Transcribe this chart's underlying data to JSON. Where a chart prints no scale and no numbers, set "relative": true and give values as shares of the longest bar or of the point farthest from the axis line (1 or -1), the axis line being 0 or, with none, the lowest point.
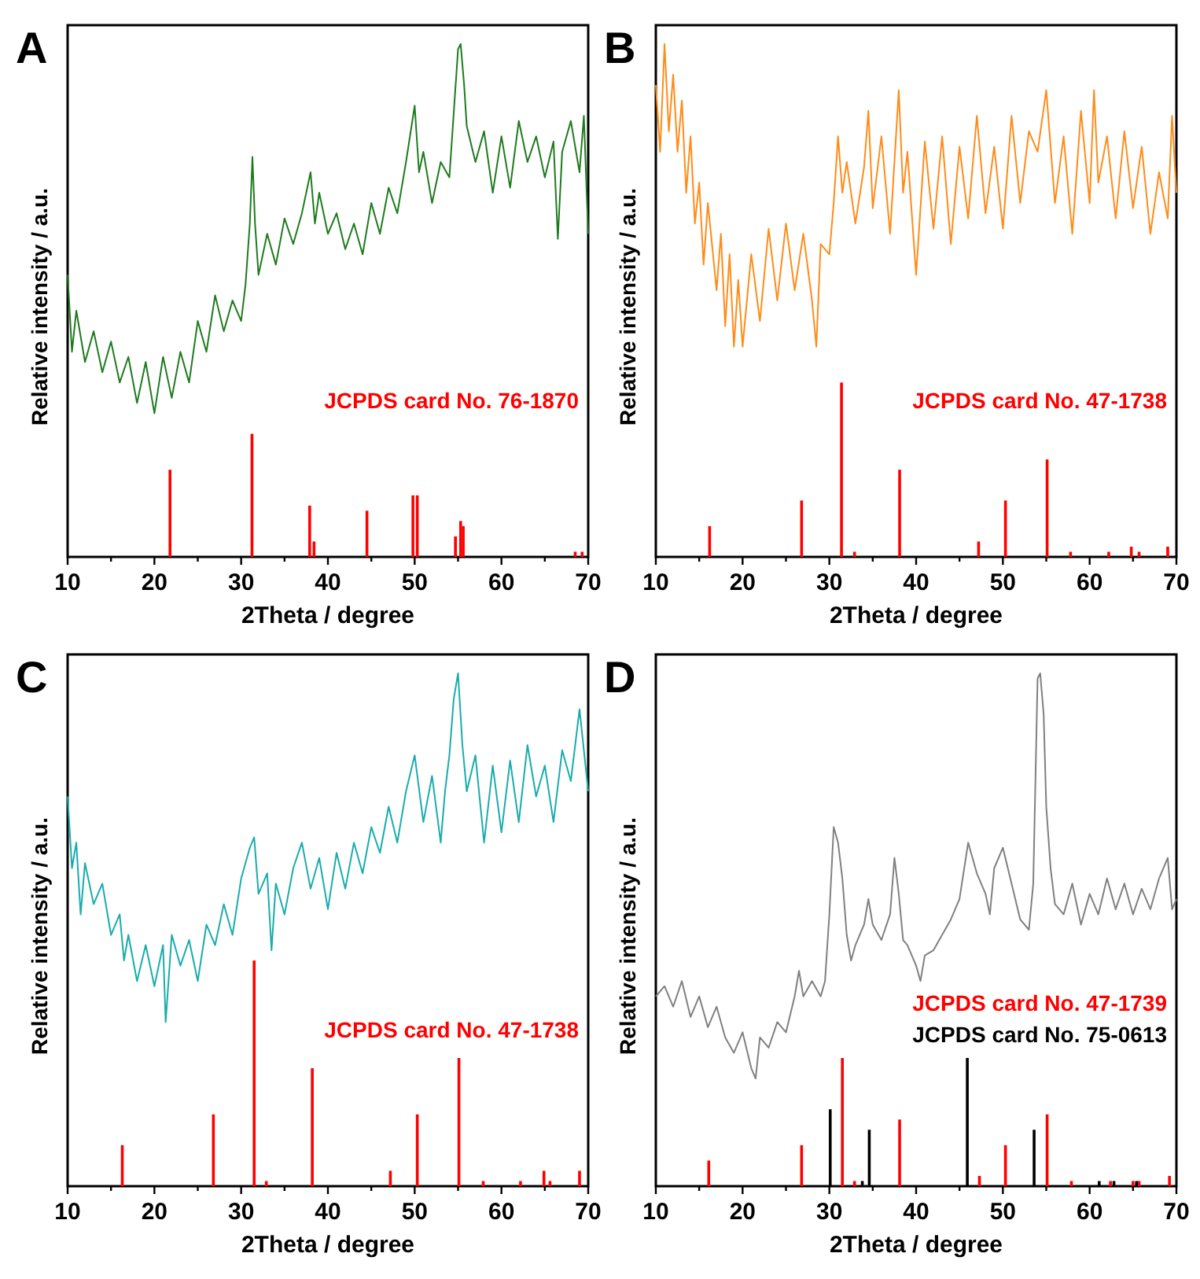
{
  "chart_data": [
    {
      "type": "line",
      "title": "A",
      "xlabel": "2Theta / degree",
      "ylabel": "Relative intensity / a.u.",
      "relative": true,
      "xlim": [
        10,
        70
      ],
      "xticks": [
        10,
        {
          "value": 15,
          "label": null
        },
        20,
        {
          "value": 25,
          "label": null
        },
        30,
        {
          "value": 35,
          "label": null
        },
        40,
        {
          "value": 45,
          "label": null
        },
        50,
        {
          "value": 55,
          "label": null
        },
        60,
        {
          "value": 65,
          "label": null
        },
        70
      ],
      "series": [
        {
          "color": "#1e7b1e",
          "x": [
            10,
            10.5,
            11,
            12,
            13,
            14,
            15,
            16,
            17,
            18,
            19,
            20,
            21,
            22,
            23,
            24,
            25,
            26,
            27,
            28,
            29,
            30,
            30.5,
            31,
            31.3,
            31.6,
            32,
            33,
            34,
            35,
            36,
            37,
            38,
            38.5,
            39,
            40,
            41,
            42,
            43,
            44,
            45,
            46,
            47,
            48,
            49,
            50,
            50.5,
            51,
            52,
            53,
            54,
            55,
            55.3,
            55.7,
            56,
            57,
            58,
            59,
            60,
            61,
            62,
            63,
            64,
            65,
            66,
            66.5,
            67,
            68,
            69,
            69.5,
            70
          ],
          "values": [
            0.55,
            0.4,
            0.48,
            0.38,
            0.44,
            0.36,
            0.42,
            0.34,
            0.39,
            0.3,
            0.38,
            0.28,
            0.39,
            0.31,
            0.4,
            0.34,
            0.46,
            0.4,
            0.51,
            0.44,
            0.5,
            0.46,
            0.53,
            0.65,
            0.78,
            0.65,
            0.55,
            0.63,
            0.57,
            0.66,
            0.61,
            0.67,
            0.75,
            0.65,
            0.71,
            0.63,
            0.67,
            0.6,
            0.65,
            0.59,
            0.69,
            0.63,
            0.72,
            0.67,
            0.77,
            0.88,
            0.75,
            0.79,
            0.69,
            0.77,
            0.74,
            0.99,
            1,
            0.92,
            0.84,
            0.77,
            0.83,
            0.71,
            0.82,
            0.72,
            0.85,
            0.77,
            0.82,
            0.74,
            0.81,
            0.62,
            0.79,
            0.85,
            0.75,
            0.86,
            0.63
          ]
        },
        {
          "type": "bar",
          "name": "JCPDS card No. 76-1870",
          "color": "#ff0000",
          "x": [
            21.8,
            31.25,
            37.9,
            38.4,
            44.5,
            49.8,
            50.3,
            54.7,
            55.3,
            55.6,
            68.5,
            69.3
          ],
          "values": [
            0.17,
            0.24,
            0.1,
            0.03,
            0.09,
            0.12,
            0.12,
            0.04,
            0.07,
            0.06,
            0.01,
            0.01
          ]
        }
      ]
    },
    {
      "type": "line",
      "title": "B",
      "xlabel": "2Theta / degree",
      "ylabel": "Relative intensity / a.u.",
      "relative": true,
      "xlim": [
        10,
        70
      ],
      "xticks": [
        10,
        {
          "value": 15,
          "label": null
        },
        20,
        {
          "value": 25,
          "label": null
        },
        30,
        {
          "value": 35,
          "label": null
        },
        40,
        {
          "value": 45,
          "label": null
        },
        50,
        {
          "value": 55,
          "label": null
        },
        60,
        {
          "value": 65,
          "label": null
        },
        70
      ],
      "series": [
        {
          "color": "#ff8c1a",
          "x": [
            10,
            10.5,
            11,
            11.5,
            12,
            12.5,
            13,
            13.5,
            14,
            14.5,
            15,
            15.5,
            16,
            17,
            17.5,
            18,
            18.5,
            19,
            19.5,
            20,
            21,
            22,
            23,
            24,
            25,
            26,
            27,
            28,
            28.5,
            29,
            30,
            30.5,
            31,
            31.5,
            32,
            33,
            34,
            34.5,
            35,
            36,
            37,
            38,
            38.5,
            39,
            40,
            41,
            42,
            43,
            44,
            45,
            46,
            47,
            48,
            49,
            50,
            51,
            52,
            53,
            54,
            55,
            56,
            57,
            58,
            59,
            60,
            60.5,
            61,
            62,
            63,
            64,
            65,
            66,
            67,
            68,
            69,
            69.5,
            70
          ],
          "values": [
            0.92,
            0.79,
            1,
            0.83,
            0.94,
            0.79,
            0.89,
            0.71,
            0.82,
            0.65,
            0.73,
            0.57,
            0.69,
            0.52,
            0.63,
            0.45,
            0.59,
            0.41,
            0.54,
            0.41,
            0.59,
            0.46,
            0.64,
            0.5,
            0.65,
            0.52,
            0.63,
            0.5,
            0.41,
            0.61,
            0.59,
            0.69,
            0.82,
            0.71,
            0.77,
            0.65,
            0.76,
            0.87,
            0.68,
            0.82,
            0.63,
            0.91,
            0.71,
            0.79,
            0.55,
            0.81,
            0.64,
            0.82,
            0.61,
            0.8,
            0.66,
            0.86,
            0.67,
            0.8,
            0.64,
            0.86,
            0.69,
            0.83,
            0.79,
            0.91,
            0.69,
            0.82,
            0.63,
            0.87,
            0.69,
            0.91,
            0.73,
            0.82,
            0.66,
            0.83,
            0.68,
            0.8,
            0.63,
            0.75,
            0.66,
            0.86,
            0.71
          ]
        },
        {
          "type": "bar",
          "name": "JCPDS card No. 47-1738",
          "color": "#ff0000",
          "x": [
            16.2,
            26.8,
            31.4,
            32.9,
            38.1,
            47.2,
            50.3,
            55.1,
            57.8,
            62.2,
            64.8,
            65.7,
            69.0
          ],
          "values": [
            0.06,
            0.11,
            0.34,
            0.01,
            0.17,
            0.03,
            0.11,
            0.19,
            0.01,
            0.01,
            0.02,
            0.01,
            0.02
          ]
        }
      ]
    },
    {
      "type": "line",
      "title": "C",
      "xlabel": "2Theta / degree",
      "ylabel": "Relative intensity / a.u.",
      "relative": true,
      "xlim": [
        10,
        70
      ],
      "xticks": [
        10,
        {
          "value": 15,
          "label": null
        },
        20,
        {
          "value": 25,
          "label": null
        },
        30,
        {
          "value": 35,
          "label": null
        },
        40,
        {
          "value": 45,
          "label": null
        },
        50,
        {
          "value": 55,
          "label": null
        },
        60,
        {
          "value": 65,
          "label": null
        },
        70
      ],
      "series": [
        {
          "color": "#1aacac",
          "x": [
            10,
            10.5,
            11,
            11.5,
            12,
            13,
            14,
            15,
            16,
            16.5,
            17,
            18,
            19,
            20,
            21,
            21.3,
            22,
            23,
            24,
            25,
            26,
            27,
            28,
            29,
            30,
            31,
            31.5,
            32,
            33,
            33.5,
            34,
            35,
            36,
            37,
            38,
            39,
            40,
            41,
            42,
            43,
            44,
            45,
            46,
            47,
            48,
            49,
            50,
            51,
            52,
            53,
            53.5,
            54,
            54.5,
            55,
            55.5,
            56,
            57,
            58,
            59,
            60,
            61,
            62,
            63,
            64,
            65,
            66,
            67,
            68,
            69,
            70
          ],
          "values": [
            0.76,
            0.62,
            0.67,
            0.53,
            0.63,
            0.55,
            0.59,
            0.49,
            0.53,
            0.44,
            0.49,
            0.4,
            0.47,
            0.39,
            0.47,
            0.32,
            0.49,
            0.43,
            0.48,
            0.4,
            0.51,
            0.47,
            0.55,
            0.49,
            0.6,
            0.66,
            0.68,
            0.57,
            0.61,
            0.46,
            0.59,
            0.53,
            0.62,
            0.67,
            0.58,
            0.64,
            0.54,
            0.65,
            0.58,
            0.67,
            0.61,
            0.7,
            0.65,
            0.74,
            0.67,
            0.77,
            0.84,
            0.71,
            0.8,
            0.67,
            0.77,
            0.84,
            0.95,
            1,
            0.86,
            0.77,
            0.84,
            0.67,
            0.82,
            0.69,
            0.83,
            0.71,
            0.86,
            0.76,
            0.82,
            0.71,
            0.85,
            0.79,
            0.93,
            0.77
          ]
        },
        {
          "type": "bar",
          "name": "JCPDS card No. 47-1738",
          "color": "#ff0000",
          "x": [
            16.3,
            26.8,
            31.5,
            32.9,
            38.2,
            47.2,
            50.3,
            55.1,
            57.9,
            62.2,
            64.9,
            65.6,
            69.0
          ],
          "values": [
            0.08,
            0.14,
            0.44,
            0.01,
            0.23,
            0.03,
            0.14,
            0.25,
            0.01,
            0.01,
            0.03,
            0.01,
            0.03
          ]
        }
      ]
    },
    {
      "type": "line",
      "title": "D",
      "xlabel": "2Theta / degree",
      "ylabel": "Relative intensity / a.u.",
      "relative": true,
      "xlim": [
        10,
        70
      ],
      "xticks": [
        10,
        {
          "value": 15,
          "label": null
        },
        20,
        {
          "value": 25,
          "label": null
        },
        30,
        {
          "value": 35,
          "label": null
        },
        40,
        {
          "value": 45,
          "label": null
        },
        50,
        {
          "value": 55,
          "label": null
        },
        60,
        {
          "value": 65,
          "label": null
        },
        70
      ],
      "series": [
        {
          "color": "#808080",
          "x": [
            10,
            11,
            12,
            13,
            14,
            15,
            16,
            17,
            18,
            19,
            20,
            21,
            21.5,
            22,
            23,
            24,
            25,
            26,
            26.5,
            27,
            28,
            29,
            29.5,
            30,
            30.5,
            31,
            31.5,
            32,
            32.5,
            33,
            34,
            34.5,
            35,
            36,
            37,
            37.5,
            38,
            38.5,
            39,
            40,
            40.5,
            41,
            42,
            43,
            44,
            45,
            46,
            47,
            48,
            48.5,
            49,
            50,
            51,
            52,
            53,
            53.5,
            54,
            54.3,
            54.7,
            55,
            55.5,
            56,
            57,
            58,
            59,
            60,
            61,
            62,
            63,
            64,
            65,
            66,
            67,
            68,
            69,
            69.5,
            70
          ],
          "values": [
            0.37,
            0.39,
            0.35,
            0.4,
            0.33,
            0.37,
            0.31,
            0.35,
            0.29,
            0.26,
            0.3,
            0.23,
            0.21,
            0.29,
            0.27,
            0.32,
            0.3,
            0.37,
            0.42,
            0.37,
            0.4,
            0.37,
            0.4,
            0.53,
            0.7,
            0.67,
            0.6,
            0.49,
            0.44,
            0.47,
            0.51,
            0.56,
            0.51,
            0.48,
            0.53,
            0.64,
            0.57,
            0.48,
            0.47,
            0.43,
            0.4,
            0.45,
            0.46,
            0.49,
            0.52,
            0.56,
            0.67,
            0.61,
            0.57,
            0.53,
            0.62,
            0.66,
            0.59,
            0.52,
            0.5,
            0.59,
            0.99,
            1,
            0.92,
            0.74,
            0.62,
            0.55,
            0.53,
            0.59,
            0.51,
            0.57,
            0.53,
            0.6,
            0.54,
            0.59,
            0.53,
            0.58,
            0.54,
            0.6,
            0.64,
            0.54,
            0.56
          ]
        },
        {
          "type": "bar",
          "name": "JCPDS card No. 47-1739",
          "color": "#ff0000",
          "x": [
            16.1,
            26.8,
            31.5,
            32.9,
            38.1,
            47.3,
            50.3,
            55.1,
            57.9,
            62.4,
            65.0,
            65.7,
            69.2
          ],
          "values": [
            0.05,
            0.08,
            0.25,
            0.01,
            0.13,
            0.02,
            0.08,
            0.14,
            0.01,
            0.01,
            0.01,
            0.01,
            0.02
          ]
        },
        {
          "type": "bar",
          "name": "JCPDS card No. 75-0613",
          "color": "#000000",
          "x": [
            30.1,
            33.8,
            34.6,
            45.9,
            53.6,
            61.1,
            62.8,
            65.4
          ],
          "values": [
            0.15,
            0.01,
            0.11,
            0.25,
            0.11,
            0.01,
            0.01,
            0.01
          ]
        }
      ]
    }
  ]
}
